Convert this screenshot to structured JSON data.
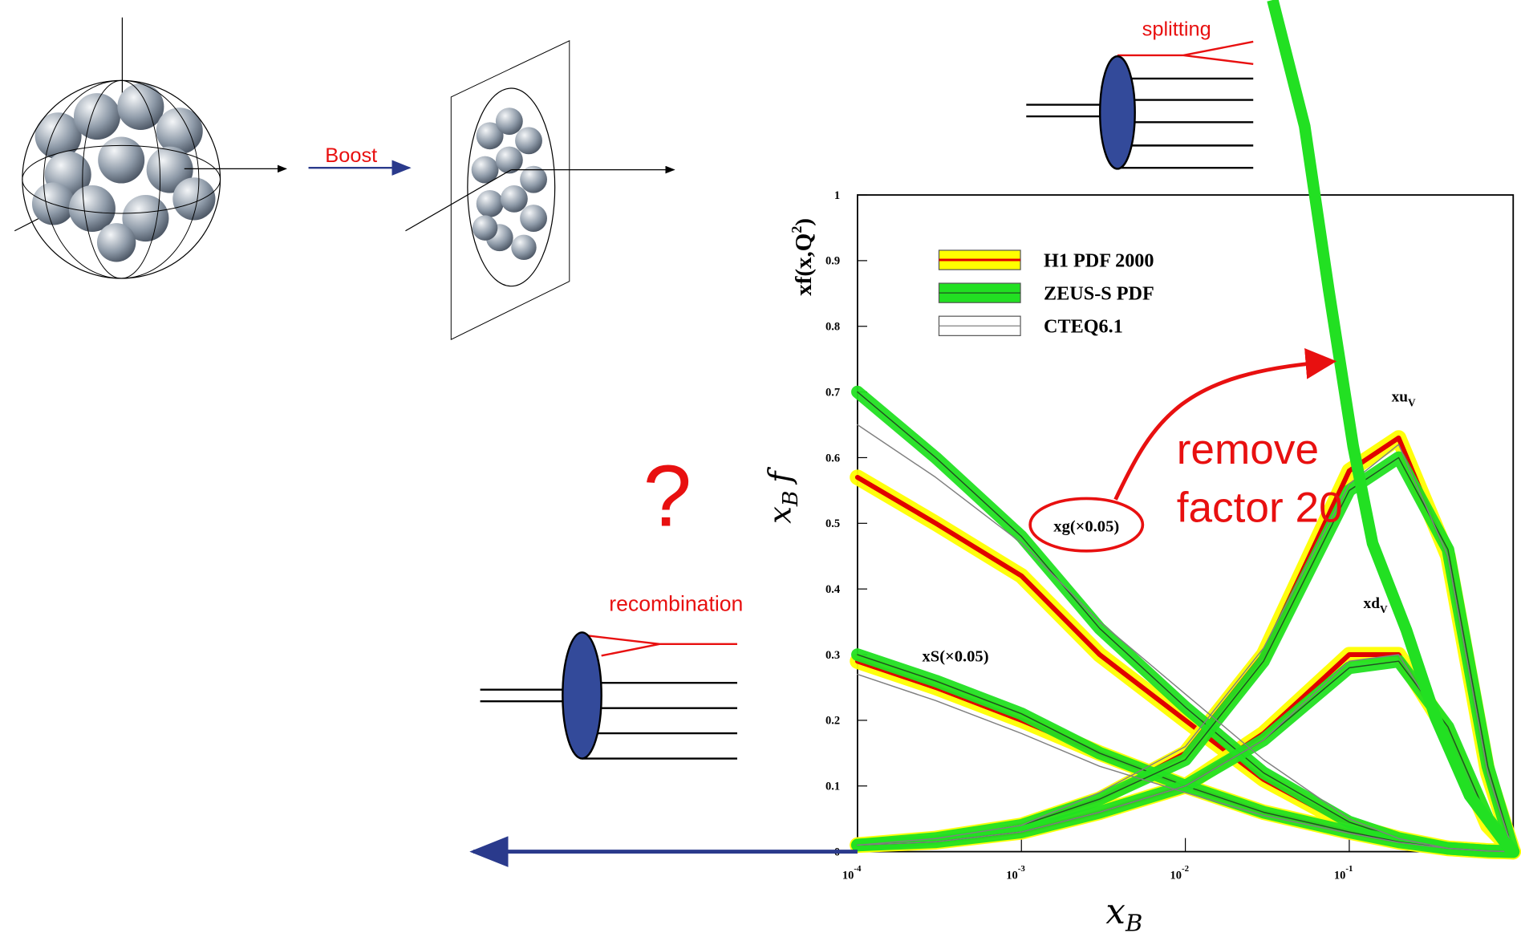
{
  "slide": {
    "boost": "Boost",
    "splitting": "splitting",
    "recombination": "recombination",
    "question": "?"
  },
  "chart_data": {
    "type": "line",
    "log_x": true,
    "x": [
      0.0001,
      0.0003,
      0.001,
      0.003,
      0.01,
      0.03,
      0.1,
      0.2,
      0.4,
      0.7,
      1
    ],
    "xlim": [
      0.0001,
      1
    ],
    "ylim": [
      0,
      1
    ],
    "xticks": [
      {
        "value": 0.0001,
        "label": "10",
        "exp": "-4"
      },
      {
        "value": 0.001,
        "label": "10",
        "exp": "-3"
      },
      {
        "value": 0.01,
        "label": "10",
        "exp": "-2"
      },
      {
        "value": 0.1,
        "label": "10",
        "exp": "-1"
      }
    ],
    "yticks": [
      0,
      0.1,
      0.2,
      0.3,
      0.4,
      0.5,
      0.6,
      0.7,
      0.8,
      0.9,
      1
    ],
    "x_label": {
      "text": "x",
      "sub": "B"
    },
    "y_label": {
      "text": "x",
      "sub": "B",
      "tail": "f"
    },
    "y_label2": {
      "text": "xf(x,Q",
      "sup": "2",
      "tail": ")"
    },
    "series": [
      {
        "name": "H1 PDF 2000",
        "color": "#ffff00",
        "line_color": "#e00000",
        "curves": [
          [
            0.57,
            0.5,
            0.42,
            0.3,
            0.2,
            0.11,
            0.04,
            0.02,
            0.005,
            0.001,
            0
          ],
          [
            0.29,
            0.25,
            0.2,
            0.15,
            0.1,
            0.06,
            0.03,
            0.015,
            0.005,
            0.001,
            0
          ],
          [
            0.01,
            0.02,
            0.04,
            0.08,
            0.15,
            0.3,
            0.58,
            0.63,
            0.45,
            0.12,
            0
          ],
          [
            0.01,
            0.015,
            0.03,
            0.06,
            0.1,
            0.18,
            0.3,
            0.3,
            0.18,
            0.04,
            0
          ]
        ]
      },
      {
        "name": "ZEUS-S PDF",
        "color": "#22e022",
        "line_color": "#205020",
        "curves": [
          [
            0.7,
            0.6,
            0.48,
            0.34,
            0.22,
            0.12,
            0.045,
            0.02,
            0.005,
            0.001,
            0
          ],
          [
            0.3,
            0.26,
            0.21,
            0.15,
            0.1,
            0.06,
            0.03,
            0.015,
            0.005,
            0.001,
            0
          ],
          [
            0.01,
            0.02,
            0.04,
            0.08,
            0.14,
            0.29,
            0.55,
            0.6,
            0.46,
            0.13,
            0
          ],
          [
            0.01,
            0.015,
            0.03,
            0.06,
            0.1,
            0.17,
            0.28,
            0.29,
            0.19,
            0.05,
            0
          ]
        ]
      },
      {
        "name": "CTEQ6.1",
        "color": "#ffffff",
        "line_color": "#808080",
        "curves": [
          [
            0.65,
            0.57,
            0.47,
            0.35,
            0.24,
            0.14,
            0.05,
            0.02,
            0.005,
            0.001,
            0
          ],
          [
            0.27,
            0.23,
            0.18,
            0.13,
            0.09,
            0.055,
            0.028,
            0.014,
            0.005,
            0.001,
            0
          ],
          [
            0.01,
            0.02,
            0.04,
            0.09,
            0.16,
            0.31,
            0.56,
            0.62,
            0.45,
            0.12,
            0
          ],
          [
            0.01,
            0.015,
            0.03,
            0.06,
            0.1,
            0.17,
            0.29,
            0.3,
            0.18,
            0.045,
            0
          ]
        ]
      }
    ],
    "curve_labels": [
      {
        "text": "xg(×0.05)"
      },
      {
        "text": "xS(×0.05)"
      },
      {
        "text": "xu",
        "sub": "V"
      },
      {
        "text": "xd",
        "sub": "V"
      }
    ],
    "annotation": [
      "remove",
      "factor 20"
    ]
  }
}
